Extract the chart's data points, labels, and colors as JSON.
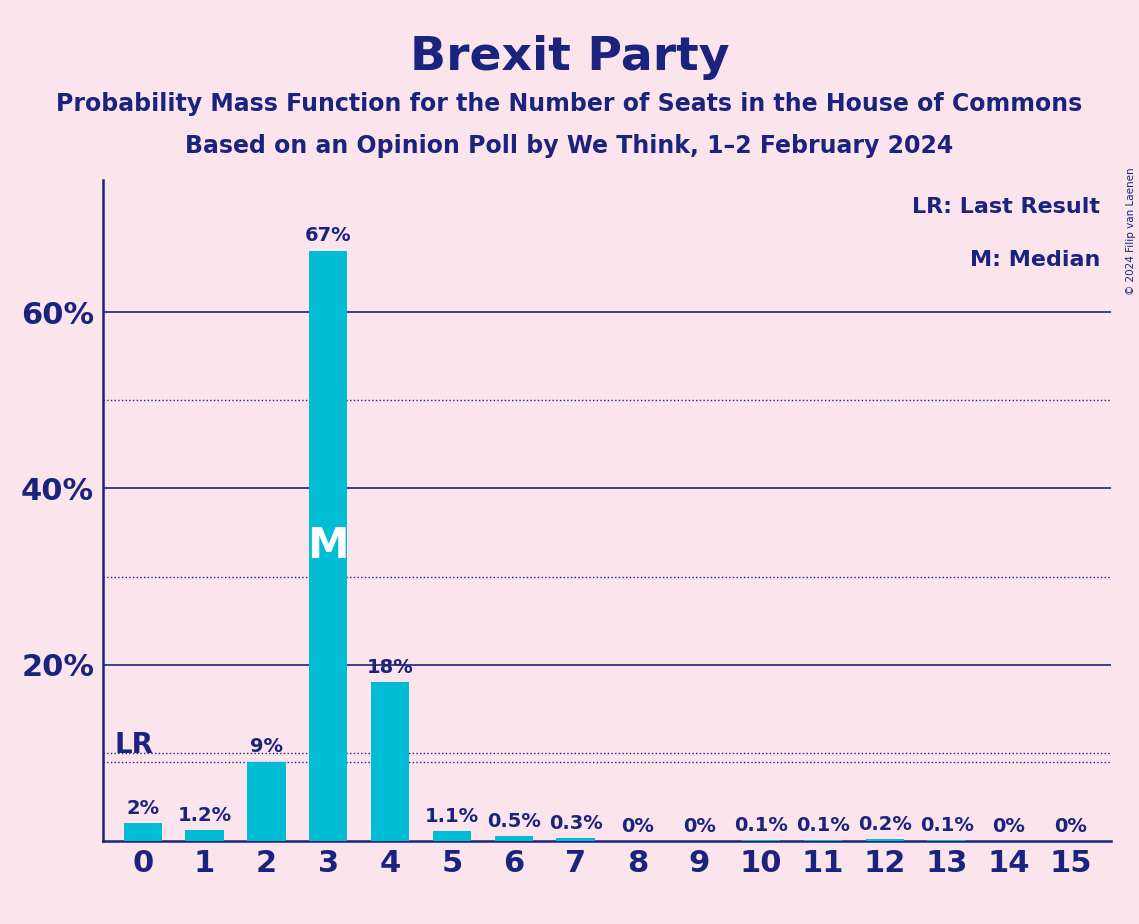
{
  "title": "Brexit Party",
  "subtitle1": "Probability Mass Function for the Number of Seats in the House of Commons",
  "subtitle2": "Based on an Opinion Poll by We Think, 1–2 February 2024",
  "copyright": "© 2024 Filip van Laenen",
  "categories": [
    0,
    1,
    2,
    3,
    4,
    5,
    6,
    7,
    8,
    9,
    10,
    11,
    12,
    13,
    14,
    15
  ],
  "values": [
    2.0,
    1.2,
    9.0,
    67.0,
    18.0,
    1.1,
    0.5,
    0.3,
    0.0,
    0.0,
    0.1,
    0.1,
    0.2,
    0.1,
    0.0,
    0.0
  ],
  "labels": [
    "2%",
    "1.2%",
    "9%",
    "67%",
    "18%",
    "1.1%",
    "0.5%",
    "0.3%",
    "0%",
    "0%",
    "0.1%",
    "0.1%",
    "0.2%",
    "0.1%",
    "0%",
    "0%"
  ],
  "bar_color": "#00bcd4",
  "background_color": "#fce4ec",
  "text_color": "#1a237e",
  "median_bar": 3,
  "lr_bar": 0,
  "lr_label": "LR",
  "median_label": "M",
  "legend_lr": "LR: Last Result",
  "legend_m": "M: Median",
  "solid_gridlines": [
    20.0,
    40.0,
    60.0
  ],
  "dotted_gridlines": [
    10.0,
    30.0,
    50.0
  ],
  "lr_dotted_line": 9.0,
  "ylim": [
    0,
    75
  ],
  "yticks": [
    20,
    40,
    60
  ],
  "ytick_labels": [
    "20%",
    "40%",
    "60%"
  ],
  "title_fontsize": 34,
  "subtitle_fontsize": 17,
  "tick_fontsize": 22,
  "label_fontsize": 14,
  "bar_width": 0.62
}
